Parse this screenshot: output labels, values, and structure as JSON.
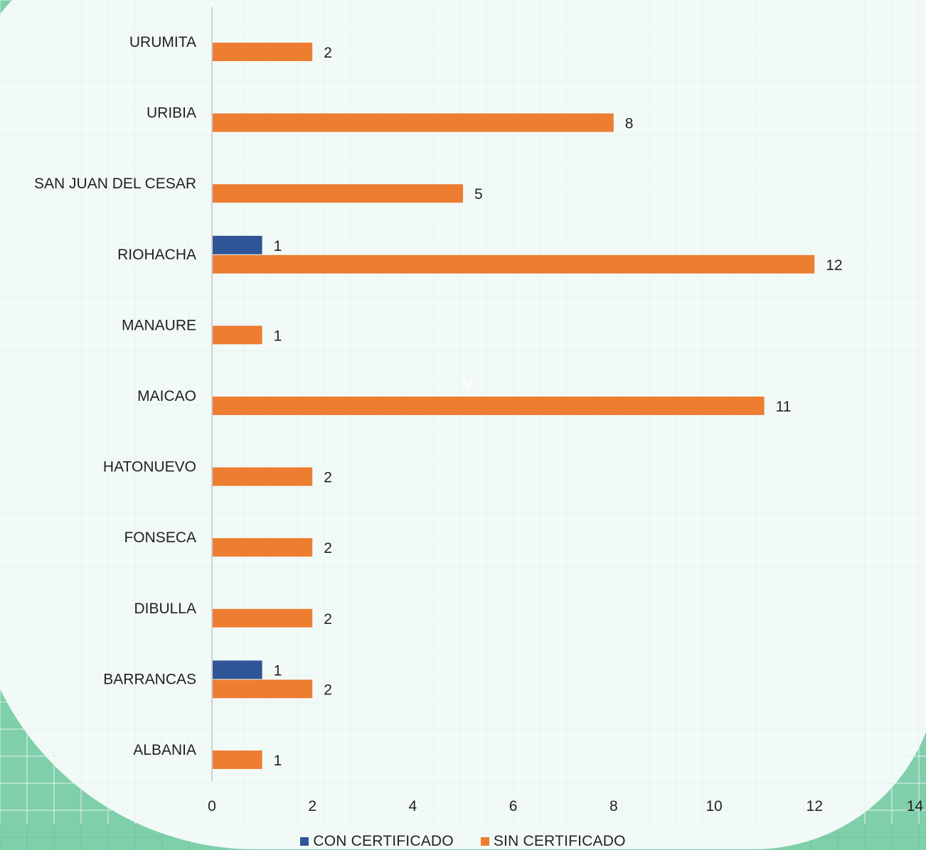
{
  "chart_data": {
    "type": "bar",
    "orientation": "horizontal",
    "categories": [
      "URUMITA",
      "URIBIA",
      "SAN JUAN DEL CESAR",
      "RIOHACHA",
      "MANAURE",
      "MAICAO",
      "HATONUEVO",
      "FONSECA",
      "DIBULLA",
      "BARRANCAS",
      "ALBANIA"
    ],
    "series": [
      {
        "name": "CON CERTIFICADO",
        "color": "#2f5597",
        "values": [
          null,
          null,
          null,
          1,
          null,
          null,
          null,
          null,
          null,
          1,
          null
        ]
      },
      {
        "name": "SIN CERTIFICADO",
        "color": "#ed7d31",
        "values": [
          2,
          8,
          5,
          12,
          1,
          11,
          2,
          2,
          2,
          2,
          1
        ]
      }
    ],
    "xlim": [
      0,
      14
    ],
    "xticks": [
      "0",
      "2",
      "4",
      "6",
      "8",
      "10",
      "12",
      "14"
    ],
    "grid": false,
    "legend_position": "bottom",
    "title": "",
    "xlabel": "",
    "ylabel": ""
  },
  "stray_mark": "v"
}
